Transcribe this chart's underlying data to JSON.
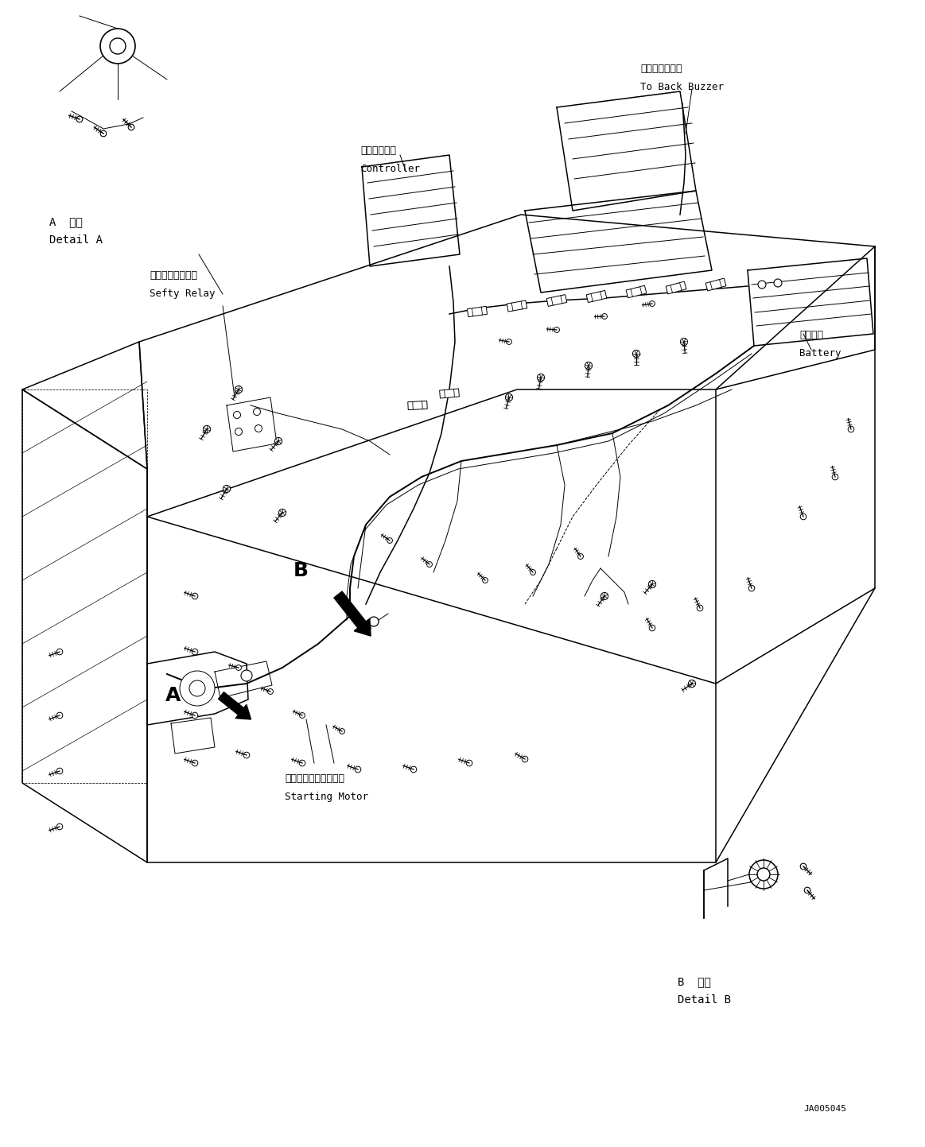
{
  "bg_color": "#ffffff",
  "line_color": "#000000",
  "figsize": [
    11.63,
    14.43
  ],
  "dpi": 100,
  "labels": {
    "detail_a_jp": "A  詳細",
    "detail_a_en": "Detail A",
    "detail_b_jp": "B  詳細",
    "detail_b_en": "Detail B",
    "back_buzzer_jp": "バックブザーへ",
    "back_buzzer_en": "To Back Buzzer",
    "controller_jp": "コントローラ",
    "controller_en": "Controller",
    "sefty_relay_jp": "セーフティリレー",
    "sefty_relay_en": "Sefty Relay",
    "battery_jp": "バッテリ",
    "battery_en": "Battery",
    "starting_motor_jp": "スターティングモータ",
    "starting_motor_en": "Starting Motor",
    "label_a": "A",
    "label_b": "B",
    "part_number": "JA005045"
  },
  "font_sizes": {
    "label": 9,
    "part_number": 8,
    "big_label": 18
  }
}
